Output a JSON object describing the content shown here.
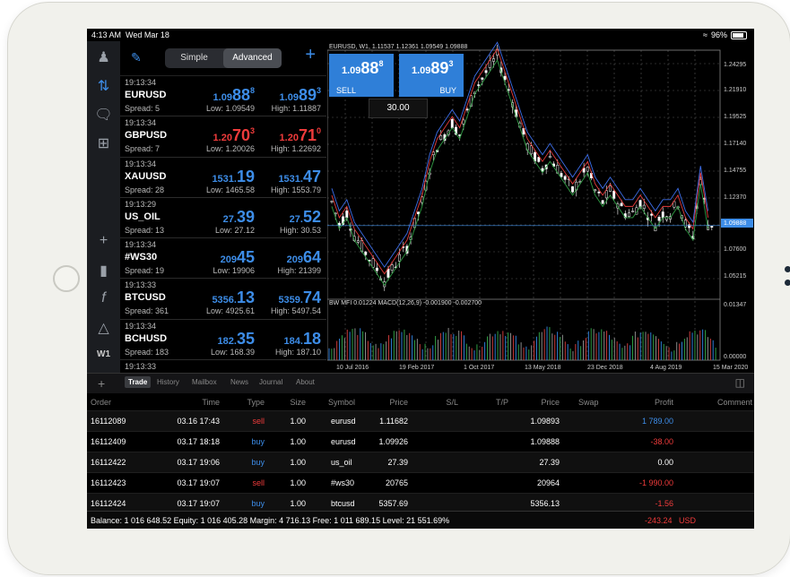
{
  "status_bar": {
    "time": "4:13 AM",
    "date": "Wed Mar 18",
    "battery": "96%"
  },
  "quotes_header": {
    "simple": "Simple",
    "advanced": "Advanced"
  },
  "quotes": [
    {
      "time": "19:13:34",
      "symbol": "EURUSD",
      "spread": "Spread: 5",
      "bid_pre": "1.09",
      "bid_big": "88",
      "bid_sup": "8",
      "bid_color": "blue",
      "ask_pre": "1.09",
      "ask_big": "89",
      "ask_sup": "3",
      "ask_color": "blue",
      "low": "Low: 1.09549",
      "high": "High: 1.11887"
    },
    {
      "time": "19:13:34",
      "symbol": "GBPUSD",
      "spread": "Spread: 7",
      "bid_pre": "1.20",
      "bid_big": "70",
      "bid_sup": "3",
      "bid_color": "red",
      "ask_pre": "1.20",
      "ask_big": "71",
      "ask_sup": "0",
      "ask_color": "red",
      "low": "Low: 1.20026",
      "high": "High: 1.22692"
    },
    {
      "time": "19:13:34",
      "symbol": "XAUUSD",
      "spread": "Spread: 28",
      "bid_pre": "1531.",
      "bid_big": "19",
      "bid_sup": "",
      "bid_color": "blue",
      "ask_pre": "1531.",
      "ask_big": "47",
      "ask_sup": "",
      "ask_color": "blue",
      "low": "Low: 1465.58",
      "high": "High: 1553.79"
    },
    {
      "time": "19:13:29",
      "symbol": "US_OIL",
      "spread": "Spread: 13",
      "bid_pre": "27.",
      "bid_big": "39",
      "bid_sup": "",
      "bid_color": "blue",
      "ask_pre": "27.",
      "ask_big": "52",
      "ask_sup": "",
      "ask_color": "blue",
      "low": "Low: 27.12",
      "high": "High: 30.53"
    },
    {
      "time": "19:13:34",
      "symbol": "#WS30",
      "spread": "Spread: 19",
      "bid_pre": "209",
      "bid_big": "45",
      "bid_sup": "",
      "bid_color": "blue",
      "ask_pre": "209",
      "ask_big": "64",
      "ask_sup": "",
      "ask_color": "blue",
      "low": "Low: 19906",
      "high": "High: 21399"
    },
    {
      "time": "19:13:33",
      "symbol": "BTCUSD",
      "spread": "Spread: 361",
      "bid_pre": "5356.",
      "bid_big": "13",
      "bid_sup": "",
      "bid_color": "blue",
      "ask_pre": "5359.",
      "ask_big": "74",
      "ask_sup": "",
      "ask_color": "blue",
      "low": "Low: 4925.61",
      "high": "High: 5497.54"
    },
    {
      "time": "19:13:34",
      "symbol": "BCHUSD",
      "spread": "Spread: 183",
      "bid_pre": "182.",
      "bid_big": "35",
      "bid_sup": "",
      "bid_color": "blue",
      "ask_pre": "184.",
      "ask_big": "18",
      "ask_sup": "",
      "ask_color": "blue",
      "low": "Low: 168.39",
      "high": "High: 187.10"
    },
    {
      "time": "19:13:33",
      "symbol": "",
      "spread": "",
      "bid_pre": "",
      "bid_big": "",
      "bid_sup": "",
      "bid_color": "blue",
      "ask_pre": "",
      "ask_big": "",
      "ask_sup": "",
      "ask_color": "blue",
      "low": "",
      "high": ""
    }
  ],
  "chart": {
    "title": "EURUSD, W1, 1.11537 1.12361 1.09549 1.09888",
    "sell_pre": "1.09",
    "sell_big": "88",
    "sell_sup": "8",
    "sell_label": "SELL",
    "buy_pre": "1.09",
    "buy_big": "89",
    "buy_sup": "3",
    "buy_label": "BUY",
    "volume": "30.00",
    "indicator": "BW MFI 0.01224 MACD(12,26,9) -0.001900 -0.002700",
    "price_labels": [
      "1.24295",
      "1.21910",
      "1.19525",
      "1.17140",
      "1.14755",
      "1.12370",
      "1.09888",
      "1.07600",
      "1.05215",
      "0.01347",
      "0.00000"
    ],
    "date_labels": [
      "10 Jul 2016",
      "19 Feb 2017",
      "1 Oct 2017",
      "13 May 2018",
      "23 Dec 2018",
      "4 Aug 2019",
      "15 Mar 2020"
    ]
  },
  "bottom_tabs": [
    "Trade",
    "History",
    "Mailbox",
    "News",
    "Journal",
    "About"
  ],
  "table": {
    "headers": [
      "Order",
      "Time",
      "Type",
      "Size",
      "Symbol",
      "Price",
      "S/L",
      "T/P",
      "Price",
      "Swap",
      "Profit",
      "Comment"
    ],
    "rows": [
      {
        "order": "16112089",
        "time": "03.16 17:43",
        "type": "sell",
        "size": "1.00",
        "symbol": "eurusd",
        "price": "1.11682",
        "price2": "1.09893",
        "profit": "1 789.00",
        "profit_color": "#3d8de8"
      },
      {
        "order": "16112409",
        "time": "03.17 18:18",
        "type": "buy",
        "size": "1.00",
        "symbol": "eurusd",
        "price": "1.09926",
        "price2": "1.09888",
        "profit": "-38.00",
        "profit_color": "#ef3b3b"
      },
      {
        "order": "16112422",
        "time": "03.17 19:06",
        "type": "buy",
        "size": "1.00",
        "symbol": "us_oil",
        "price": "27.39",
        "price2": "27.39",
        "profit": "0.00",
        "profit_color": "#ffffff"
      },
      {
        "order": "16112423",
        "time": "03.17 19:07",
        "type": "sell",
        "size": "1.00",
        "symbol": "#ws30",
        "price": "20765",
        "price2": "20964",
        "profit": "-1 990.00",
        "profit_color": "#ef3b3b"
      },
      {
        "order": "16112424",
        "time": "03.17 19:07",
        "type": "buy",
        "size": "1.00",
        "symbol": "btcusd",
        "price": "5357.69",
        "price2": "5356.13",
        "profit": "-1.56",
        "profit_color": "#ef3b3b"
      }
    ]
  },
  "footer": {
    "summary": "Balance: 1 016 648.52 Equity: 1 016 405.28 Margin: 4 716.13 Free: 1 011 689.15 Level: 21 551.69%",
    "total": "-243.24",
    "currency": "USD"
  },
  "left_icons": [
    "profile-icon",
    "quotes-icon",
    "chat-icon",
    "new-order-icon",
    "crosshair-icon",
    "chart-type-icon",
    "function-icon",
    "objects-icon",
    "timeframe-icon"
  ],
  "timeframe_label": "W1"
}
